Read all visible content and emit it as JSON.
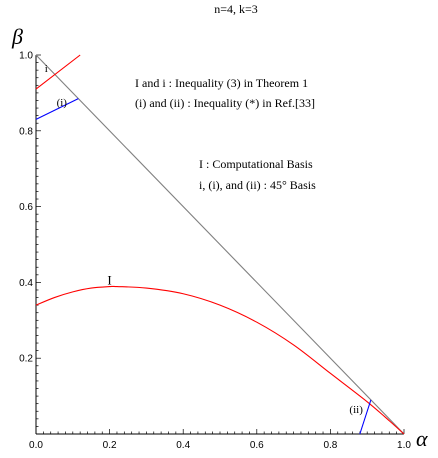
{
  "chart_data": {
    "type": "line",
    "title": "n=4, k=3",
    "xlabel": "α",
    "ylabel": "β",
    "xlim": [
      0,
      1
    ],
    "ylim": [
      0,
      1
    ],
    "x_ticks": [
      "0.0",
      "0.2",
      "0.4",
      "0.6",
      "0.8",
      "1.0"
    ],
    "y_ticks": [
      "0.2",
      "0.4",
      "0.6",
      "0.8",
      "1.0"
    ],
    "grid": false,
    "legend": {
      "lines": [
        "I and i :  Inequality (3) in Theorem 1",
        "(i) and (ii) :  Inequality (*) in Ref.[33]",
        "I :   Computational Basis",
        "i, (i), and (ii) :  45°  Basis"
      ]
    },
    "annotations": [
      {
        "label": "i",
        "x": 0.028,
        "y": 0.955
      },
      {
        "label": "(i)",
        "x": 0.07,
        "y": 0.865
      },
      {
        "label": "I",
        "x": 0.2,
        "y": 0.395
      },
      {
        "label": "(ii)",
        "x": 0.87,
        "y": 0.055
      }
    ],
    "series": [
      {
        "label": "boundary",
        "color": "#808080",
        "x": [
          0,
          1
        ],
        "y": [
          1,
          0
        ]
      },
      {
        "label": "I",
        "color": "#ff0000",
        "x": [
          0.0,
          0.05,
          0.1,
          0.15,
          0.2,
          0.22,
          0.3,
          0.4,
          0.5,
          0.6,
          0.7,
          0.8,
          0.9,
          0.96,
          1.0
        ],
        "y": [
          0.34,
          0.36,
          0.375,
          0.385,
          0.389,
          0.389,
          0.385,
          0.37,
          0.34,
          0.295,
          0.235,
          0.16,
          0.085,
          0.035,
          0.0
        ]
      },
      {
        "label": "i",
        "color": "#ff0000",
        "x": [
          0.0,
          0.12
        ],
        "y": [
          0.91,
          1.0
        ]
      },
      {
        "label": "(i)",
        "color": "#0000ff",
        "x": [
          0.0,
          0.115
        ],
        "y": [
          0.83,
          0.885
        ]
      },
      {
        "label": "(ii)",
        "color": "#0000ff",
        "x": [
          0.88,
          0.91
        ],
        "y": [
          0.0,
          0.09
        ]
      }
    ]
  }
}
